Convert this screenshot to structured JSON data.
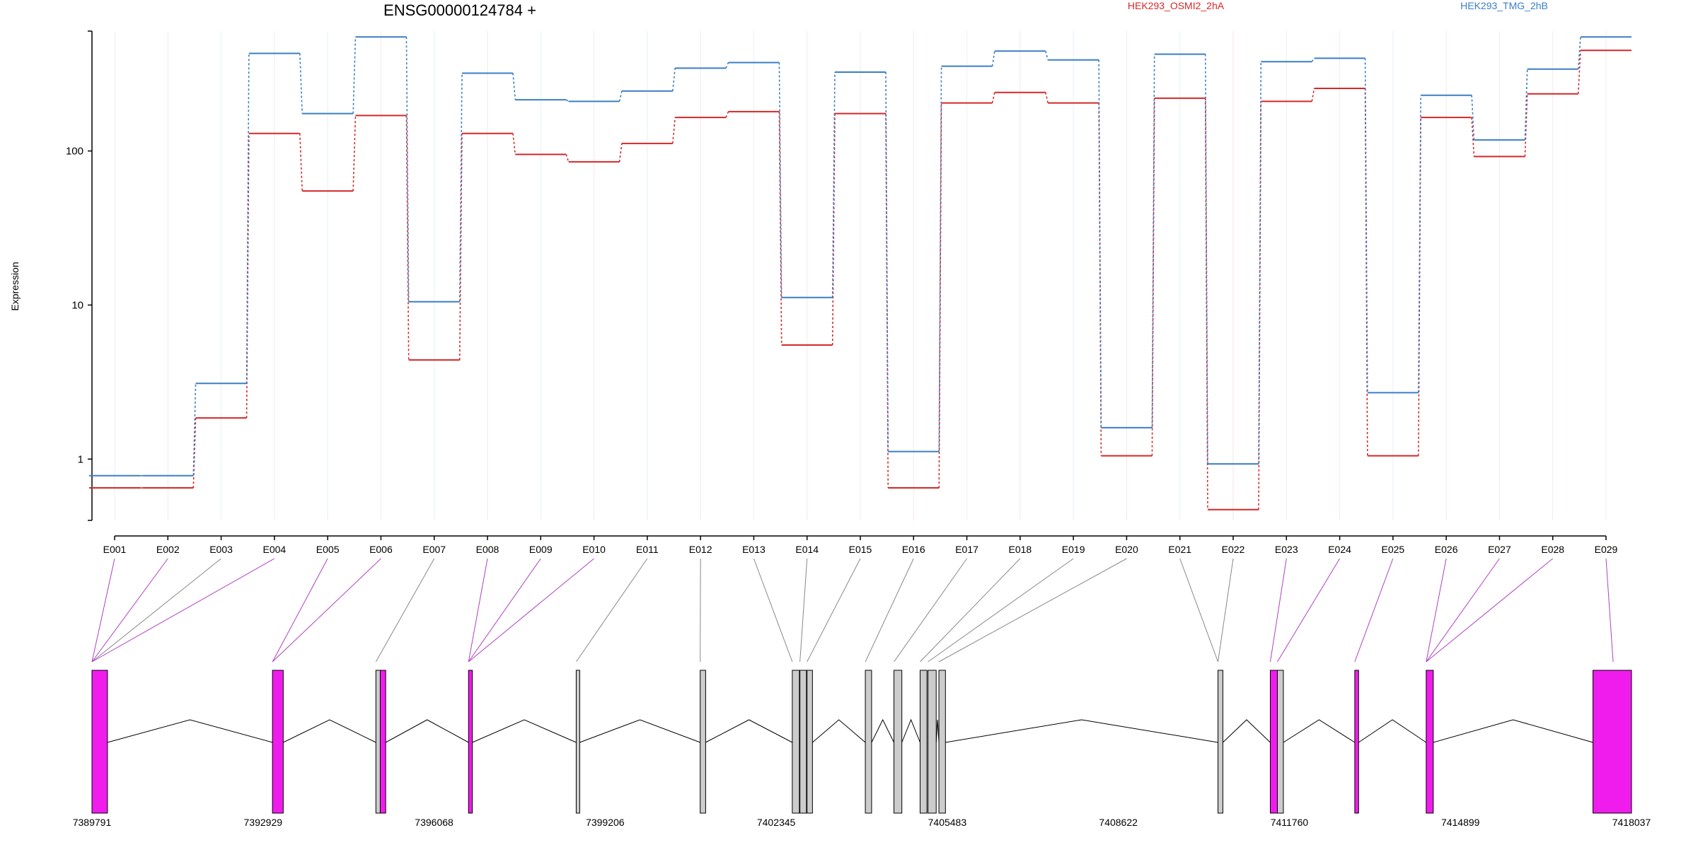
{
  "chart_data": {
    "type": "line",
    "title": "ENSG00000124784 +",
    "ylabel": "Expression",
    "yscale": "log",
    "ylim": [
      0.4,
      600
    ],
    "y_ticks": [
      "1",
      "10",
      "100"
    ],
    "y_tick_values": [
      1,
      10,
      100
    ],
    "categories": [
      "E001",
      "E002",
      "E003",
      "E004",
      "E005",
      "E006",
      "E007",
      "E008",
      "E009",
      "E010",
      "E011",
      "E012",
      "E013",
      "E014",
      "E015",
      "E016",
      "E017",
      "E018",
      "E019",
      "E020",
      "E021",
      "E022",
      "E023",
      "E024",
      "E025",
      "E026",
      "E027",
      "E028",
      "E029"
    ],
    "series": [
      {
        "name": "HEK293_OSMI2_2hA",
        "color": "#d62728",
        "values": [
          0.65,
          0.65,
          1.85,
          130,
          55,
          170,
          4.4,
          130,
          95,
          85,
          112,
          165,
          180,
          5.5,
          175,
          0.65,
          205,
          240,
          205,
          1.05,
          220,
          0.47,
          210,
          255,
          1.05,
          165,
          92,
          235,
          450
        ]
      },
      {
        "name": "HEK293_TMG_2hB",
        "color": "#3a7fc4",
        "values": [
          0.78,
          0.78,
          3.1,
          430,
          175,
          550,
          10.5,
          320,
          215,
          210,
          245,
          345,
          375,
          11.2,
          325,
          1.12,
          355,
          445,
          390,
          1.6,
          425,
          0.93,
          380,
          400,
          2.7,
          230,
          118,
          340,
          550
        ]
      }
    ],
    "exon_highlight": [
      true,
      true,
      false,
      true,
      true,
      true,
      false,
      true,
      true,
      true,
      false,
      false,
      false,
      false,
      false,
      false,
      false,
      false,
      false,
      false,
      false,
      false,
      true,
      true,
      true,
      true,
      true,
      true,
      true
    ],
    "gene_model": {
      "coordinate_labels": [
        "7389791",
        "7392929",
        "7396068",
        "7399206",
        "7402345",
        "7405483",
        "7408622",
        "7411760",
        "7414899",
        "7418037"
      ],
      "coordinate_range": [
        7389791,
        7418037
      ],
      "exons": [
        {
          "start": 7389791,
          "end": 7390075,
          "type": "coding"
        },
        {
          "start": 7393103,
          "end": 7393300,
          "type": "coding"
        },
        {
          "start": 7395000,
          "end": 7395080,
          "type": "noncoding"
        },
        {
          "start": 7395080,
          "end": 7395180,
          "type": "coding"
        },
        {
          "start": 7396700,
          "end": 7396770,
          "type": "coding"
        },
        {
          "start": 7398675,
          "end": 7398740,
          "type": "noncoding"
        },
        {
          "start": 7400950,
          "end": 7401050,
          "type": "noncoding"
        },
        {
          "start": 7402640,
          "end": 7402770,
          "type": "noncoding"
        },
        {
          "start": 7402780,
          "end": 7402900,
          "type": "noncoding"
        },
        {
          "start": 7402910,
          "end": 7403010,
          "type": "noncoding"
        },
        {
          "start": 7403980,
          "end": 7404095,
          "type": "noncoding"
        },
        {
          "start": 7404505,
          "end": 7404650,
          "type": "noncoding"
        },
        {
          "start": 7404985,
          "end": 7405110,
          "type": "noncoding"
        },
        {
          "start": 7405130,
          "end": 7405280,
          "type": "noncoding"
        },
        {
          "start": 7405330,
          "end": 7405450,
          "type": "noncoding"
        },
        {
          "start": 7410450,
          "end": 7410540,
          "type": "noncoding"
        },
        {
          "start": 7411410,
          "end": 7411540,
          "type": "coding"
        },
        {
          "start": 7411540,
          "end": 7411650,
          "type": "noncoding"
        },
        {
          "start": 7412960,
          "end": 7413030,
          "type": "coding"
        },
        {
          "start": 7414270,
          "end": 7414400,
          "type": "coding"
        },
        {
          "start": 7417330,
          "end": 7418037,
          "type": "coding"
        }
      ],
      "bin_targets": [
        7389791,
        7389791,
        7389791,
        7389791,
        7393103,
        7393103,
        7395000,
        7396700,
        7396700,
        7396700,
        7398675,
        7400950,
        7402640,
        7402780,
        7402910,
        7403980,
        7404505,
        7404985,
        7405130,
        7405330,
        7410450,
        7410450,
        7411410,
        7411540,
        7412960,
        7414270,
        7414270,
        7414270,
        7417700
      ]
    }
  }
}
